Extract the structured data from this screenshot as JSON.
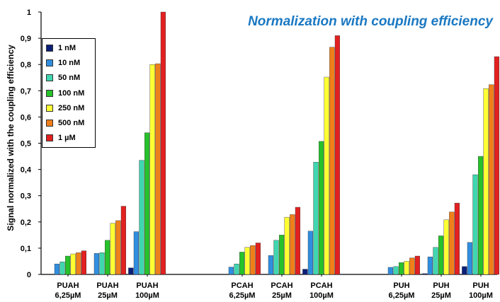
{
  "chart_data": {
    "type": "bar",
    "title": "Normalization with coupling efficiency",
    "ylabel": "Signal normalized with the coupling efficiency",
    "xlabel": "",
    "ylim": [
      0,
      1
    ],
    "yticks": [
      "0",
      "0,1",
      "0,2",
      "0,3",
      "0,4",
      "0,5",
      "0,6",
      "0,7",
      "0,8",
      "0,9",
      "1"
    ],
    "grid": false,
    "legend_position": "top-left",
    "categories": [
      {
        "line1": "PUAH",
        "line2": "6,25µM"
      },
      {
        "line1": "PUAH",
        "line2": "25µM"
      },
      {
        "line1": "PUAH",
        "line2": "100µM"
      },
      {
        "line1": "PCAH",
        "line2": "6,25µM"
      },
      {
        "line1": "PCAH",
        "line2": "25µM"
      },
      {
        "line1": "PCAH",
        "line2": "100µM"
      },
      {
        "line1": "PUH",
        "line2": "6,25µM"
      },
      {
        "line1": "PUH",
        "line2": "25µM"
      },
      {
        "line1": "PUH",
        "line2": "100µM"
      }
    ],
    "series": [
      {
        "name": "1 nM",
        "color": "#0b1f78",
        "values": [
          0,
          0,
          0.025,
          0,
          0,
          0.02,
          0,
          0.003,
          0.03
        ]
      },
      {
        "name": "10 nM",
        "color": "#2f8ee0",
        "values": [
          0.04,
          0.08,
          0.163,
          0.028,
          0.072,
          0.165,
          0.027,
          0.067,
          0.122
        ]
      },
      {
        "name": "50 nM",
        "color": "#3fd6b0",
        "values": [
          0.048,
          0.083,
          0.435,
          0.04,
          0.13,
          0.428,
          0.03,
          0.103,
          0.38
        ]
      },
      {
        "name": "100 nM",
        "color": "#27c22a",
        "values": [
          0.07,
          0.13,
          0.54,
          0.085,
          0.15,
          0.507,
          0.045,
          0.147,
          0.45
        ]
      },
      {
        "name": "250 nM",
        "color": "#ffff33",
        "values": [
          0.078,
          0.195,
          0.8,
          0.103,
          0.218,
          0.752,
          0.05,
          0.208,
          0.708
        ]
      },
      {
        "name": "500 nM",
        "color": "#ef7f1a",
        "values": [
          0.083,
          0.205,
          0.803,
          0.11,
          0.228,
          0.866,
          0.063,
          0.238,
          0.723
        ]
      },
      {
        "name": "1 µM",
        "color": "#e32020",
        "values": [
          0.09,
          0.26,
          1.0,
          0.12,
          0.256,
          0.91,
          0.07,
          0.272,
          0.83
        ]
      }
    ]
  }
}
